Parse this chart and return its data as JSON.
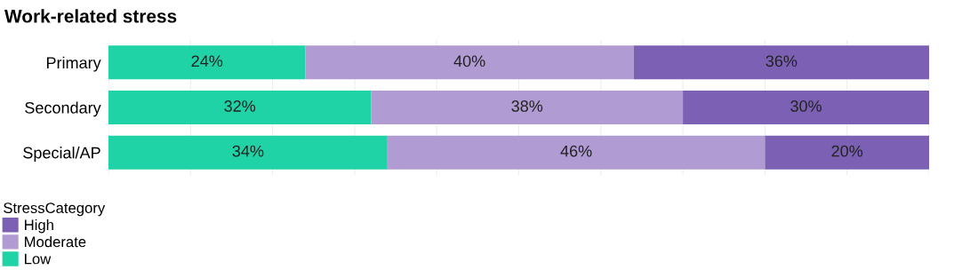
{
  "chart_data": {
    "type": "bar",
    "orientation": "horizontal",
    "stacked": true,
    "title": "Work-related stress",
    "categories": [
      "Primary",
      "Secondary",
      "Special/AP"
    ],
    "series": [
      {
        "name": "Low",
        "color": "#1fd3a6",
        "values": [
          24,
          32,
          34
        ],
        "value_labels": [
          "24%",
          "32%",
          "34%"
        ]
      },
      {
        "name": "Moderate",
        "color": "#b09bd3",
        "values": [
          40,
          38,
          46
        ],
        "value_labels": [
          "40%",
          "38%",
          "46%"
        ]
      },
      {
        "name": "High",
        "color": "#7b60b4",
        "values": [
          36,
          30,
          20
        ],
        "value_labels": [
          "36%",
          "30%",
          "20%"
        ]
      }
    ],
    "xlim": [
      0,
      100
    ],
    "xticks": [
      {
        "value": 0,
        "label": null
      },
      {
        "value": 10,
        "label": null
      },
      {
        "value": 20,
        "label": null
      },
      {
        "value": 30,
        "label": null
      },
      {
        "value": 40,
        "label": null
      },
      {
        "value": 50,
        "label": null
      },
      {
        "value": 60,
        "label": null
      },
      {
        "value": 70,
        "label": null
      },
      {
        "value": 80,
        "label": null
      },
      {
        "value": 90,
        "label": null
      },
      {
        "value": 100,
        "label": null
      }
    ],
    "grid": "x",
    "tick_labels": "y",
    "legend": "bottom left",
    "legend_title": "StressCategory"
  }
}
